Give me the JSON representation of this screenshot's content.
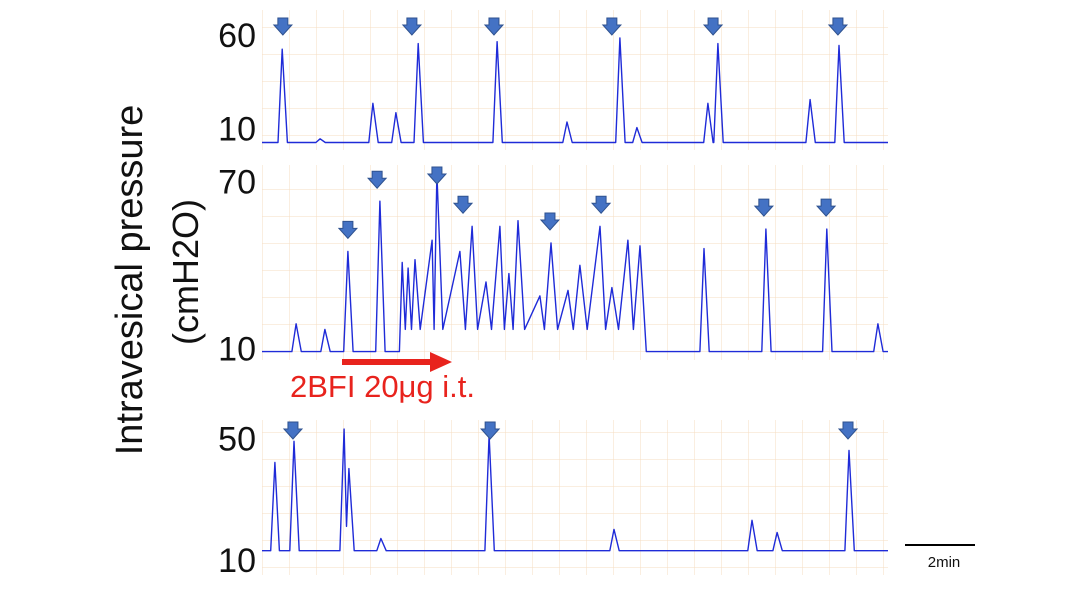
{
  "y_label": [
    "Intravesical pressure",
    "(cmH2O)"
  ],
  "annotation": "2BFI 20μg i.t.",
  "scale_bar_label": "2min",
  "chart_data": [
    {
      "type": "line",
      "xlim": [
        0,
        18
      ],
      "ylim": [
        0,
        75
      ],
      "yticks": [
        10,
        60
      ],
      "x": [
        0,
        0.46,
        0.58,
        0.73,
        1.55,
        1.67,
        1.82,
        3.07,
        3.19,
        3.34,
        3.73,
        3.85,
        4.0,
        4.37,
        4.49,
        4.64,
        6.64,
        6.76,
        6.91,
        8.65,
        8.77,
        8.92,
        10.17,
        10.29,
        10.44,
        10.66,
        10.78,
        10.93,
        12.7,
        12.82,
        12.97,
        12.99,
        13.11,
        13.26,
        15.64,
        15.76,
        15.91,
        16.47,
        16.59,
        16.74,
        18
      ],
      "series": [
        {
          "color": "#1f2bd8",
          "values": [
            4,
            4,
            54,
            4,
            4,
            6,
            4,
            4,
            25,
            4,
            4,
            20,
            4,
            4,
            57,
            4,
            4,
            58,
            4,
            4,
            15,
            4,
            4,
            60,
            4,
            4,
            12,
            4,
            4,
            25,
            4,
            4,
            57,
            4,
            4,
            27,
            4,
            4,
            56,
            4,
            4
          ]
        }
      ],
      "arrows": {
        "color": "#4472c4",
        "x": [
          0.6,
          4.31,
          6.67,
          10.06,
          12.97,
          16.56
        ]
      }
    },
    {
      "type": "line",
      "xlim": [
        0,
        18
      ],
      "ylim": [
        7,
        77
      ],
      "yticks": [
        10,
        70
      ],
      "x": [
        0,
        0.86,
        0.98,
        1.13,
        1.69,
        1.81,
        1.96,
        2.35,
        2.47,
        2.62,
        3.27,
        3.39,
        3.54,
        3.95,
        4.03,
        4.12,
        4.2,
        4.3,
        4.4,
        4.55,
        4.89,
        4.95,
        5.03,
        5.2,
        5.69,
        5.85,
        6.04,
        6.2,
        6.44,
        6.6,
        6.84,
        6.97,
        7.1,
        7.22,
        7.36,
        7.55,
        7.99,
        8.12,
        8.31,
        8.5,
        8.8,
        8.95,
        9.14,
        9.35,
        9.72,
        9.88,
        10.06,
        10.25,
        10.52,
        10.68,
        10.87,
        11.05,
        12.59,
        12.71,
        12.86,
        14.37,
        14.49,
        14.64,
        16.12,
        16.24,
        16.39,
        17.59,
        17.71,
        17.86,
        18
      ],
      "series": [
        {
          "color": "#1f2bd8",
          "values": [
            10,
            10,
            20,
            10,
            10,
            18,
            10,
            10,
            46,
            10,
            10,
            64,
            10,
            10,
            42,
            18,
            40,
            18,
            43,
            18,
            50,
            18,
            74,
            18,
            46,
            18,
            55,
            18,
            35,
            18,
            55,
            18,
            38,
            18,
            57,
            18,
            30,
            18,
            49,
            18,
            32,
            18,
            41,
            18,
            55,
            18,
            33,
            18,
            50,
            18,
            48,
            10,
            10,
            47,
            10,
            10,
            54,
            10,
            10,
            54,
            10,
            10,
            20,
            10,
            10
          ]
        }
      ],
      "arrows": {
        "color": "#4472c4",
        "x": [
          2.47,
          3.31,
          5.03,
          5.78,
          8.28,
          9.75,
          14.43,
          16.22
        ]
      }
    },
    {
      "type": "line",
      "xlim": [
        0,
        18
      ],
      "ylim": [
        6,
        57
      ],
      "yticks": [
        10,
        50
      ],
      "x": [
        0,
        0.25,
        0.37,
        0.5,
        0.8,
        0.92,
        1.07,
        2.24,
        2.36,
        2.43,
        2.5,
        2.65,
        3.3,
        3.42,
        3.57,
        6.41,
        6.53,
        6.68,
        10.0,
        10.12,
        10.27,
        13.97,
        14.09,
        14.24,
        14.69,
        14.81,
        14.96,
        16.76,
        16.88,
        17.03,
        18
      ],
      "series": [
        {
          "color": "#1f2bd8",
          "values": [
            14,
            14,
            43,
            14,
            14,
            50,
            14,
            14,
            54,
            22,
            41,
            14,
            14,
            18,
            14,
            14,
            52,
            14,
            14,
            21,
            14,
            14,
            24,
            14,
            14,
            20,
            14,
            14,
            47,
            14,
            14
          ]
        }
      ],
      "arrows": {
        "color": "#4472c4",
        "x": [
          0.89,
          6.56,
          16.85
        ]
      }
    }
  ]
}
